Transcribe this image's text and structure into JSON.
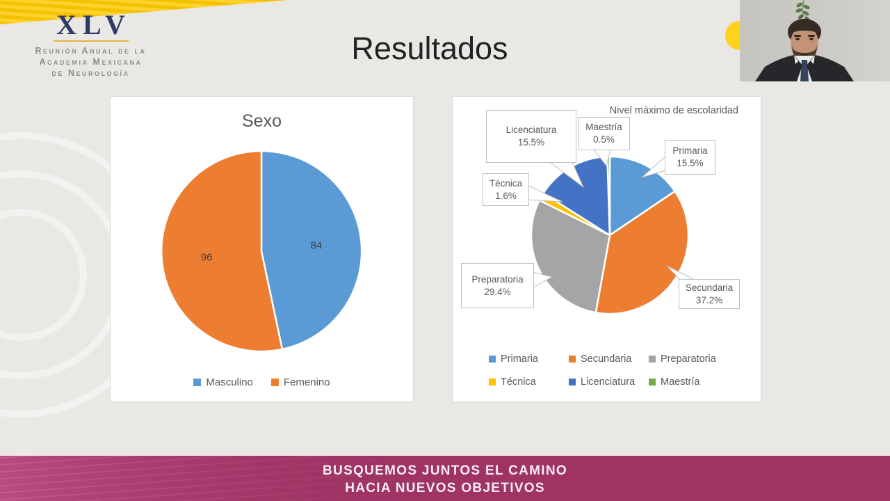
{
  "slide": {
    "title": "Resultados"
  },
  "logo": {
    "acronym": "XLV",
    "lines": [
      "Reunión Anual de la",
      "Academia Mexicana",
      "de Neurología"
    ]
  },
  "banner": {
    "line1": "BUSQUEMOS JUNTOS EL CAMINO",
    "line2": "HACIA NUEVOS OBJETIVOS",
    "color": "#9e3364"
  },
  "decor": {
    "ribbon_color": "#f6c800",
    "yellow_circle_color": "#ffd21e"
  },
  "chart_data": [
    {
      "type": "pie",
      "title": "Sexo",
      "categories": [
        "Masculino",
        "Femenino"
      ],
      "values": [
        84,
        96
      ],
      "colors": [
        "#5B9BD5",
        "#ED7D31"
      ],
      "data_labels": [
        "84",
        "96"
      ],
      "start_angle_deg": 0,
      "direction": "clockwise",
      "legend_position": "bottom"
    },
    {
      "type": "pie",
      "title": "Nivel máximo de escolaridad",
      "categories": [
        "Primaria",
        "Secundaria",
        "Preparatoria",
        "Técnica",
        "Licenciatura",
        "Maestría"
      ],
      "values_pct": [
        15.5,
        37.2,
        29.4,
        1.6,
        15.5,
        0.5
      ],
      "colors": [
        "#5B9BD5",
        "#ED7D31",
        "#A5A5A5",
        "#FFC000",
        "#4472C4",
        "#70AD47"
      ],
      "callout_labels": [
        "Primaria 15.5%",
        "Secundaria 37.2%",
        "Preparatoria 29.4%",
        "Técnica 1.6%",
        "Licenciatura 15.5%",
        "Maestría 0.5%"
      ],
      "start_angle_deg": 0,
      "direction": "clockwise",
      "legend_position": "bottom"
    }
  ]
}
